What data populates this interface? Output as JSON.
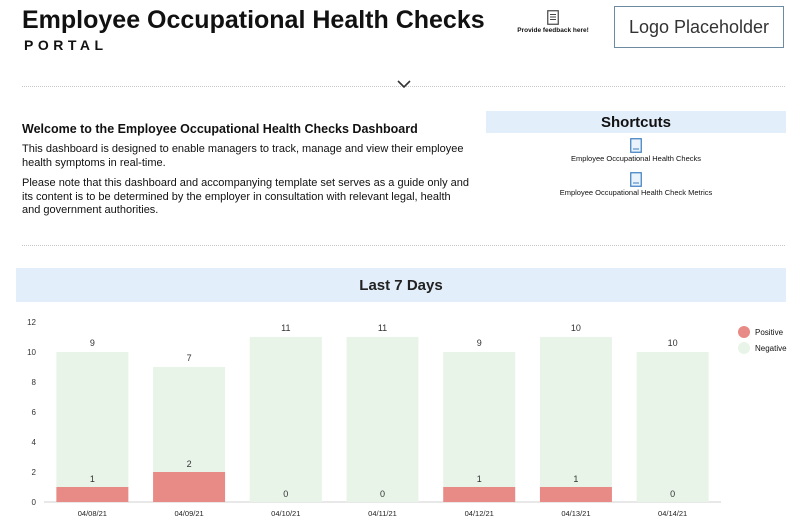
{
  "header": {
    "title": "Employee Occupational Health Checks",
    "subtitle": "PORTAL",
    "feedback_label": "Provide feedback here!",
    "logo_placeholder": "Logo Placeholder"
  },
  "welcome": {
    "title": "Welcome to the Employee Occupational Health Checks Dashboard",
    "paragraph1": "This dashboard is designed to enable managers to track, manage and view their employee health symptoms in real-time.",
    "paragraph2": "Please note that this dashboard and accompanying template set serves as a guide only and its content is to be determined by the employer in consultation with relevant legal, health and government authorities."
  },
  "shortcuts": {
    "title": "Shortcuts",
    "items": [
      {
        "label": "Employee Occupational Health Checks",
        "icon": "document-icon"
      },
      {
        "label": "Employee Occupational Health Check Metrics",
        "icon": "document-icon"
      }
    ]
  },
  "section_title": "Last 7 Days",
  "colors": {
    "positive": "#e88a86",
    "negative": "#e8f4e8",
    "accent_bg": "#e2eef9"
  },
  "chart_data": {
    "type": "bar",
    "stacked": true,
    "categories": [
      "04/08/21",
      "04/09/21",
      "04/10/21",
      "04/11/21",
      "04/12/21",
      "04/13/21",
      "04/14/21"
    ],
    "series": [
      {
        "name": "Positive",
        "values": [
          1,
          2,
          0,
          0,
          1,
          1,
          0
        ]
      },
      {
        "name": "Negative",
        "values": [
          9,
          7,
          11,
          11,
          9,
          10,
          10
        ]
      }
    ],
    "ylim": [
      0,
      12
    ],
    "yticks": [
      0,
      2,
      4,
      6,
      8,
      10,
      12
    ],
    "legend": "right"
  }
}
